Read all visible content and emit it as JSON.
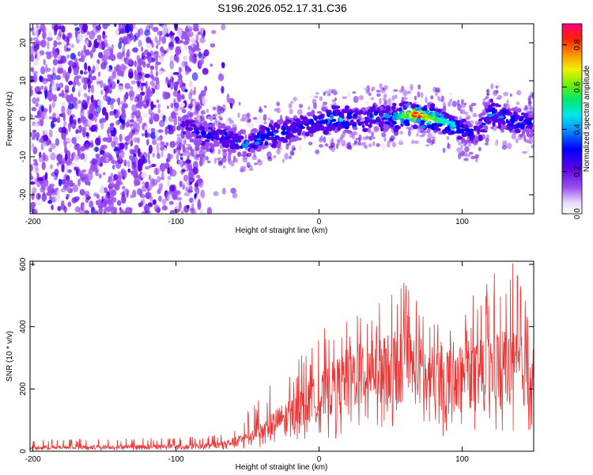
{
  "title": "S196.2026.052.17.31.C36",
  "colors": {
    "snr_line": "#ee3333",
    "frame": "#000000"
  },
  "chart_data": [
    {
      "type": "heatmap",
      "name": "spectrogram",
      "xlabel": "Height of straight line (km)",
      "ylabel": "Frequency (Hz)",
      "xlim": [
        -202,
        150
      ],
      "ylim": [
        -25,
        25
      ],
      "xticks": [
        -200,
        -100,
        0,
        100
      ],
      "yticks": [
        -20,
        -10,
        0,
        10,
        20
      ],
      "colorbar": {
        "label": "Normalized spectral amplitude",
        "range": [
          0,
          0.9
        ],
        "ticks": [
          0.0,
          0.2,
          0.4,
          0.6,
          0.8
        ]
      },
      "ridge": {
        "description": "frequency of strongest signal vs height",
        "x": [
          -90,
          -80,
          -70,
          -60,
          -50,
          -40,
          -30,
          -20,
          -10,
          0,
          10,
          20,
          30,
          40,
          50,
          60,
          70,
          80,
          90,
          100,
          110,
          120,
          130,
          140,
          150
        ],
        "freq": [
          -2,
          -5,
          -4,
          -6,
          -7,
          -5,
          -4,
          -3,
          -2,
          -1,
          0,
          0,
          0,
          1,
          0,
          1,
          1,
          0,
          -1,
          -3,
          -4,
          2,
          0,
          -1,
          -1
        ],
        "amplitude": [
          0.25,
          0.3,
          0.3,
          0.35,
          0.35,
          0.4,
          0.4,
          0.35,
          0.3,
          0.35,
          0.4,
          0.4,
          0.35,
          0.35,
          0.4,
          0.6,
          0.85,
          0.6,
          0.5,
          0.35,
          0.3,
          0.4,
          0.35,
          0.35,
          0.3
        ]
      }
    },
    {
      "type": "line",
      "name": "snr",
      "xlabel": "Height of straight line (km)",
      "ylabel": "SNR (10 * v/v)",
      "xlim": [
        -202,
        150
      ],
      "ylim": [
        0,
        610
      ],
      "xticks": [
        -200,
        -100,
        0,
        100
      ],
      "yticks": [
        0,
        200,
        400,
        600
      ],
      "envelope": {
        "x": [
          -200,
          -150,
          -100,
          -80,
          -70,
          -60,
          -50,
          -40,
          -30,
          -20,
          -10,
          0,
          10,
          20,
          30,
          40,
          50,
          60,
          70,
          80,
          90,
          100,
          110,
          120,
          130,
          140,
          150
        ],
        "mean": [
          12,
          14,
          16,
          18,
          22,
          30,
          45,
          65,
          95,
          120,
          150,
          170,
          200,
          230,
          260,
          280,
          260,
          280,
          260,
          230,
          240,
          250,
          240,
          270,
          280,
          260,
          240
        ],
        "max": [
          40,
          40,
          45,
          50,
          60,
          80,
          130,
          200,
          220,
          260,
          330,
          380,
          420,
          440,
          460,
          470,
          500,
          560,
          470,
          420,
          400,
          460,
          520,
          560,
          620,
          590,
          450
        ]
      }
    }
  ]
}
